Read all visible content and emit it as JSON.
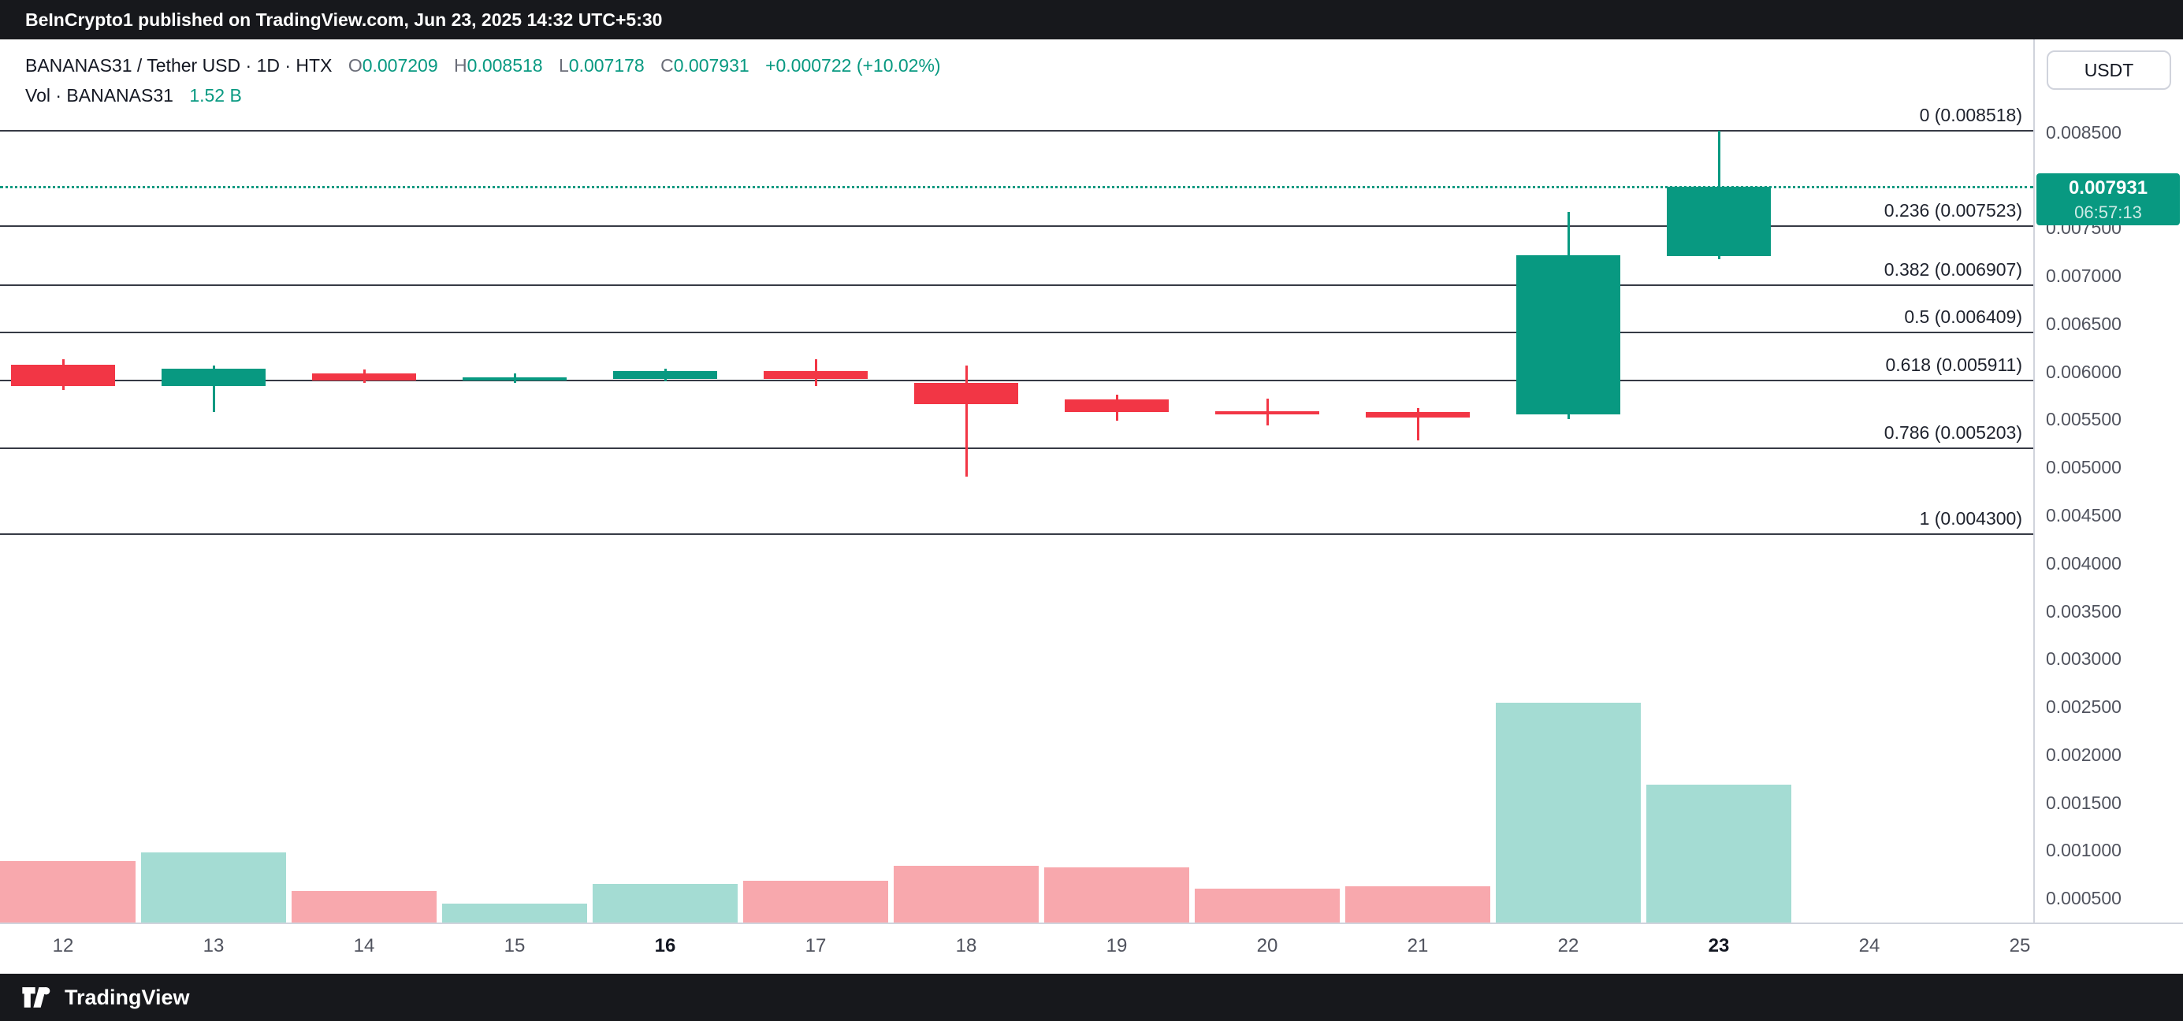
{
  "header": {
    "publish_text": "BeInCrypto1 published on TradingView.com, Jun 23, 2025 14:32 UTC+5:30"
  },
  "footer": {
    "brand": "TradingView"
  },
  "toolbar": {
    "currency_button": "USDT"
  },
  "legend": {
    "title": "BANANAS31 / Tether USD · 1D · HTX",
    "o_label": "O",
    "o_value": "0.007209",
    "h_label": "H",
    "h_value": "0.008518",
    "l_label": "L",
    "l_value": "0.007178",
    "c_label": "C",
    "c_value": "0.007931",
    "change": "+0.000722 (+10.02%)",
    "vol_label": "Vol · BANANAS31",
    "vol_value": "1.52 B"
  },
  "price_scale": {
    "tick_values": [
      0.0085,
      0.0075,
      0.007,
      0.0065,
      0.006,
      0.0055,
      0.005,
      0.0045,
      0.004,
      0.0035,
      0.003,
      0.0025,
      0.002,
      0.0015,
      0.001,
      0.0005
    ],
    "current_price_label": "0.007931",
    "countdown": "06:57:13"
  },
  "fib_levels": [
    {
      "label": "0 (0.008518)",
      "value": 0.008518
    },
    {
      "label": "0.236 (0.007523)",
      "value": 0.007523
    },
    {
      "label": "0.382 (0.006907)",
      "value": 0.006907
    },
    {
      "label": "0.5 (0.006409)",
      "value": 0.006409
    },
    {
      "label": "0.618 (0.005911)",
      "value": 0.005911
    },
    {
      "label": "0.786 (0.005203)",
      "value": 0.005203
    },
    {
      "label": "1 (0.004300)",
      "value": 0.0043
    }
  ],
  "chart_data": {
    "type": "candlestick+volume",
    "title": "BANANAS31 / Tether USD · 1D · HTX",
    "x_labels": [
      "12",
      "13",
      "14",
      "15",
      "16",
      "17",
      "18",
      "19",
      "20",
      "21",
      "22",
      "23",
      "24",
      "25"
    ],
    "bold_x_labels": [
      "16",
      "23"
    ],
    "ylim": [
      0.000245,
      0.009471
    ],
    "current_price": 0.007931,
    "candles": [
      {
        "x": "12",
        "o": 0.00607,
        "h": 0.00613,
        "l": 0.00581,
        "c": 0.00585
      },
      {
        "x": "13",
        "o": 0.00585,
        "h": 0.00606,
        "l": 0.00558,
        "c": 0.00603
      },
      {
        "x": "14",
        "o": 0.00598,
        "h": 0.00602,
        "l": 0.00588,
        "c": 0.00591
      },
      {
        "x": "15",
        "o": 0.00593,
        "h": 0.00598,
        "l": 0.00588,
        "c": 0.00594
      },
      {
        "x": "16",
        "o": 0.00592,
        "h": 0.00603,
        "l": 0.0059,
        "c": 0.00601
      },
      {
        "x": "17",
        "o": 0.00601,
        "h": 0.00613,
        "l": 0.00585,
        "c": 0.00592
      },
      {
        "x": "18",
        "o": 0.00588,
        "h": 0.00606,
        "l": 0.0049,
        "c": 0.00566
      },
      {
        "x": "19",
        "o": 0.00571,
        "h": 0.00576,
        "l": 0.00549,
        "c": 0.00558
      },
      {
        "x": "20",
        "o": 0.00559,
        "h": 0.00572,
        "l": 0.00544,
        "c": 0.00556
      },
      {
        "x": "21",
        "o": 0.00558,
        "h": 0.00562,
        "l": 0.00528,
        "c": 0.00552
      },
      {
        "x": "22",
        "o": 0.00555,
        "h": 0.00767,
        "l": 0.0055,
        "c": 0.00722
      },
      {
        "x": "23",
        "o": 0.007209,
        "h": 0.008518,
        "l": 0.007178,
        "c": 0.007931
      }
    ],
    "volume_billions": [
      {
        "x": "12",
        "value_b": 0.68,
        "up": false
      },
      {
        "x": "13",
        "value_b": 0.77,
        "up": true
      },
      {
        "x": "14",
        "value_b": 0.35,
        "up": false
      },
      {
        "x": "15",
        "value_b": 0.21,
        "up": true
      },
      {
        "x": "16",
        "value_b": 0.43,
        "up": true
      },
      {
        "x": "17",
        "value_b": 0.46,
        "up": false
      },
      {
        "x": "18",
        "value_b": 0.63,
        "up": false
      },
      {
        "x": "19",
        "value_b": 0.61,
        "up": false
      },
      {
        "x": "20",
        "value_b": 0.37,
        "up": false
      },
      {
        "x": "21",
        "value_b": 0.4,
        "up": false
      },
      {
        "x": "22",
        "value_b": 2.43,
        "up": true
      },
      {
        "x": "23",
        "value_b": 1.52,
        "up": true
      }
    ]
  },
  "colors": {
    "up": "#089981",
    "down": "#F23645",
    "vol_up": "#A4DCD3",
    "vol_down": "#F8A8AD",
    "accent": "#089981",
    "fib_line": "#363a45"
  }
}
